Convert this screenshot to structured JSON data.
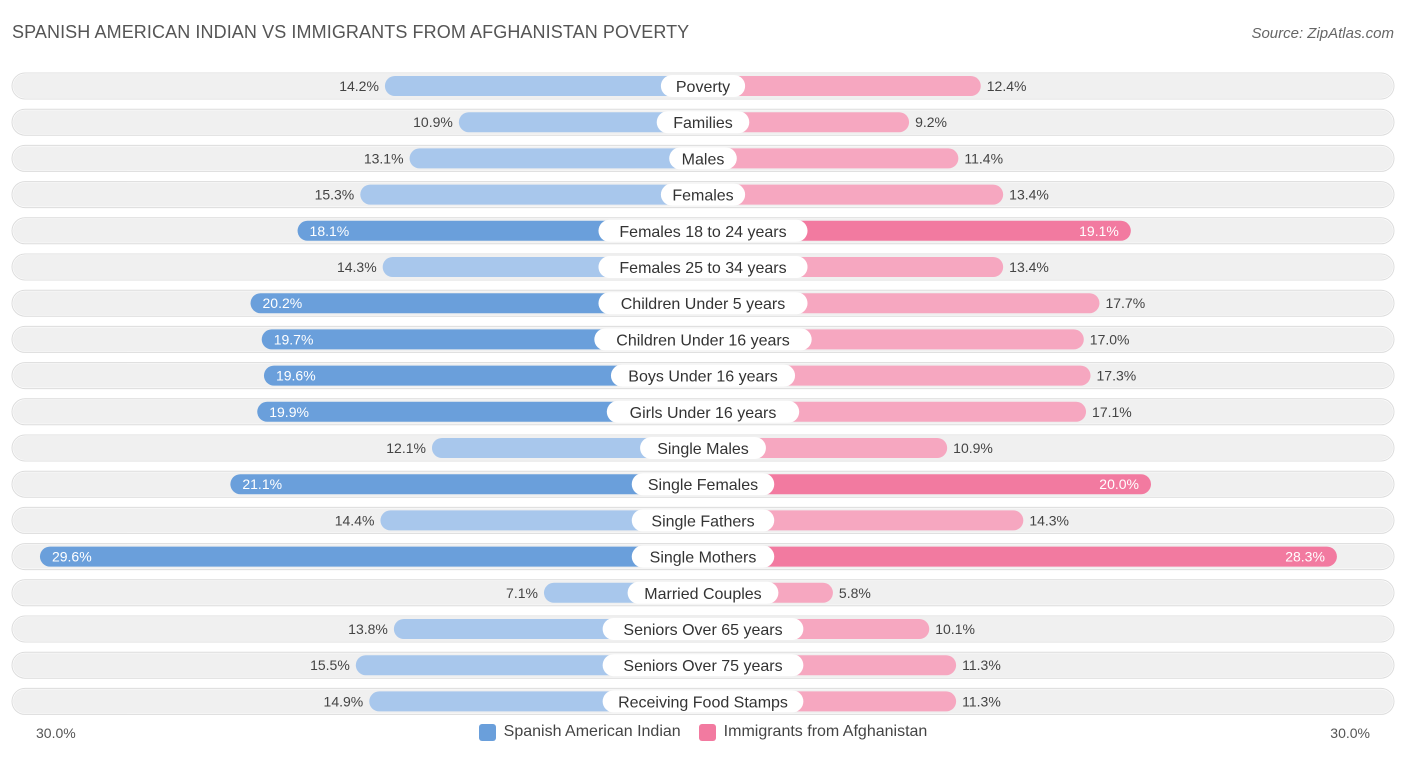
{
  "title": "SPANISH AMERICAN INDIAN VS IMMIGRANTS FROM AFGHANISTAN POVERTY",
  "source": "Source: ZipAtlas.com",
  "colors": {
    "left_dark": "#6a9fdb",
    "left_light": "#a8c7ec",
    "right_dark": "#f27aa0",
    "right_light": "#f6a7c0",
    "track": "#f0f0f0"
  },
  "chart_data": {
    "type": "bar",
    "orientation": "horizontal-diverging",
    "title": "SPANISH AMERICAN INDIAN VS IMMIGRANTS FROM AFGHANISTAN POVERTY",
    "categories": [
      "Poverty",
      "Families",
      "Males",
      "Females",
      "Females 18 to 24 years",
      "Females 25 to 34 years",
      "Children Under 5 years",
      "Children Under 16 years",
      "Boys Under 16 years",
      "Girls Under 16 years",
      "Single Males",
      "Single Females",
      "Single Fathers",
      "Single Mothers",
      "Married Couples",
      "Seniors Over 65 years",
      "Seniors Over 75 years",
      "Receiving Food Stamps"
    ],
    "series": [
      {
        "name": "Spanish American Indian",
        "values": [
          14.2,
          10.9,
          13.1,
          15.3,
          18.1,
          14.3,
          20.2,
          19.7,
          19.6,
          19.9,
          12.1,
          21.1,
          14.4,
          29.6,
          7.1,
          13.8,
          15.5,
          14.9
        ],
        "labels": [
          "14.2%",
          "10.9%",
          "13.1%",
          "15.3%",
          "18.1%",
          "14.3%",
          "20.2%",
          "19.7%",
          "19.6%",
          "19.9%",
          "12.1%",
          "21.1%",
          "14.4%",
          "29.6%",
          "7.1%",
          "13.8%",
          "15.5%",
          "14.9%"
        ]
      },
      {
        "name": "Immigrants from Afghanistan",
        "values": [
          12.4,
          9.2,
          11.4,
          13.4,
          19.1,
          13.4,
          17.7,
          17.0,
          17.3,
          17.1,
          10.9,
          20.0,
          14.3,
          28.3,
          5.8,
          10.1,
          11.3,
          11.3
        ],
        "labels": [
          "12.4%",
          "9.2%",
          "11.4%",
          "13.4%",
          "19.1%",
          "13.4%",
          "17.7%",
          "17.0%",
          "17.3%",
          "17.1%",
          "10.9%",
          "20.0%",
          "14.3%",
          "28.3%",
          "5.8%",
          "10.1%",
          "11.3%",
          "11.3%"
        ]
      }
    ],
    "xlim": [
      0,
      30
    ],
    "axis_min_label": "30.0%",
    "axis_max_label": "30.0%",
    "legend_position": "bottom-center"
  }
}
